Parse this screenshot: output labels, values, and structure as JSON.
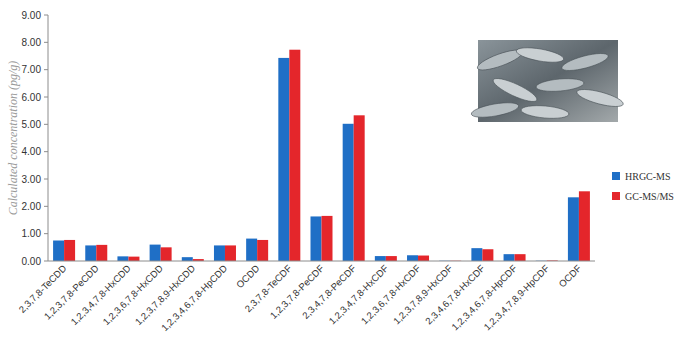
{
  "chart_data": {
    "type": "bar",
    "y_label": "Calculated concentration (pg/g)",
    "categories": [
      "2,3,7,8-TeCDD",
      "1,2,3,7,8-PeCDD",
      "1,2,3,4,7,8-HxCDD",
      "1,2,3,6,7,8-HxCDD",
      "1,2,3,7,8,9-HxCDD",
      "1,2,3,4,6,7,8-HpCDD",
      "OCDD",
      "2,3,7,8-TeCDF",
      "1,2,3,7,8-PeCDF",
      "2,3,4,7,8-PeCDF",
      "1,2,3,4,7,8-HxCDF",
      "1,2,3,6,7,8-HxCDF",
      "1,2,3,7,8,9-HxCDF",
      "2,3,4,6,7,8-HxCDF",
      "1,2,3,4,6,7,8-HpCDF",
      "1,2,3,4,7,8,9-HpCDF",
      "OCDF"
    ],
    "series": [
      {
        "name": "HRGC-MS",
        "color": "#1f6fc6",
        "values": [
          0.75,
          0.57,
          0.17,
          0.6,
          0.14,
          0.57,
          0.82,
          7.43,
          1.63,
          5.02,
          0.18,
          0.21,
          0.01,
          0.47,
          0.25,
          0.01,
          2.33
        ]
      },
      {
        "name": "GC-MS/MS",
        "color": "#e4262b",
        "values": [
          0.77,
          0.59,
          0.16,
          0.5,
          0.07,
          0.57,
          0.77,
          7.73,
          1.65,
          5.33,
          0.18,
          0.2,
          0.01,
          0.43,
          0.25,
          0.02,
          2.55
        ]
      }
    ],
    "ylim": [
      0,
      9
    ],
    "yticks": [
      {
        "value": 0,
        "label": "0.00"
      },
      {
        "value": 1,
        "label": "1.00"
      },
      {
        "value": 2,
        "label": "2.00"
      },
      {
        "value": 3,
        "label": "3.00"
      },
      {
        "value": 4,
        "label": "4.00"
      },
      {
        "value": 5,
        "label": "5.00"
      },
      {
        "value": 6,
        "label": "6.00"
      },
      {
        "value": 7,
        "label": "7.00"
      },
      {
        "value": 8,
        "label": "8.00"
      },
      {
        "value": 9,
        "label": "9.00"
      }
    ],
    "grid": false,
    "legend": "right"
  }
}
